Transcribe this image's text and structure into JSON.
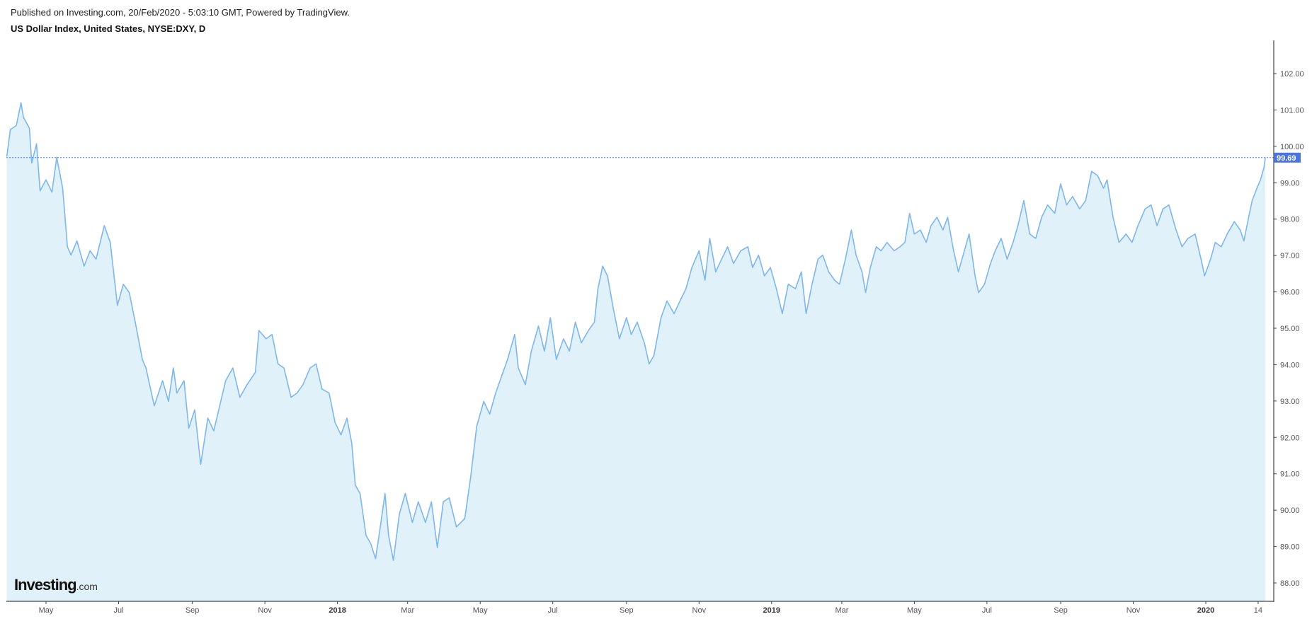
{
  "header": {
    "published": "Published on Investing.com, 20/Feb/2020 - 5:03:10 GMT, Powered by TradingView.",
    "title": "US Dollar Index, United States, NYSE:DXY, D"
  },
  "logo": {
    "main": "Investing",
    "suffix": ".com"
  },
  "chart_data": {
    "type": "area",
    "title": "US Dollar Index, United States, NYSE:DXY, D",
    "y_axis_position": "right",
    "ylim": [
      87.5,
      102.8
    ],
    "y_ticks": [
      "102.00",
      "101.00",
      "100.00",
      "99.00",
      "98.00",
      "97.00",
      "96.00",
      "95.00",
      "94.00",
      "93.00",
      "92.00",
      "91.00",
      "90.00",
      "89.00",
      "88.00"
    ],
    "x_ticks": [
      {
        "label": "May",
        "date": "2017-05-01",
        "bold": false
      },
      {
        "label": "Jul",
        "date": "2017-07-01",
        "bold": false
      },
      {
        "label": "Sep",
        "date": "2017-09-01",
        "bold": false
      },
      {
        "label": "Nov",
        "date": "2017-11-01",
        "bold": false
      },
      {
        "label": "2018",
        "date": "2018-01-01",
        "bold": true
      },
      {
        "label": "Mar",
        "date": "2018-03-01",
        "bold": false
      },
      {
        "label": "May",
        "date": "2018-05-01",
        "bold": false
      },
      {
        "label": "Jul",
        "date": "2018-07-01",
        "bold": false
      },
      {
        "label": "Sep",
        "date": "2018-09-01",
        "bold": false
      },
      {
        "label": "Nov",
        "date": "2018-11-01",
        "bold": false
      },
      {
        "label": "2019",
        "date": "2019-01-01",
        "bold": true
      },
      {
        "label": "Mar",
        "date": "2019-03-01",
        "bold": false
      },
      {
        "label": "May",
        "date": "2019-05-01",
        "bold": false
      },
      {
        "label": "Jul",
        "date": "2019-07-01",
        "bold": false
      },
      {
        "label": "Sep",
        "date": "2019-09-01",
        "bold": false
      },
      {
        "label": "Nov",
        "date": "2019-11-01",
        "bold": false
      },
      {
        "label": "2020",
        "date": "2020-01-01",
        "bold": true
      },
      {
        "label": "14",
        "date": "2020-02-14",
        "bold": false
      }
    ],
    "last_value": "99.69",
    "colors": {
      "line": "#7db7ec",
      "fill": "#e1f1fa",
      "last_price": "#4a74e0"
    },
    "grid": false,
    "points": [
      [
        "2017-03-29",
        99.72
      ],
      [
        "2017-04-01",
        100.46
      ],
      [
        "2017-04-06",
        100.57
      ],
      [
        "2017-04-10",
        101.2
      ],
      [
        "2017-04-12",
        100.8
      ],
      [
        "2017-04-17",
        100.5
      ],
      [
        "2017-04-19",
        99.54
      ],
      [
        "2017-04-23",
        100.07
      ],
      [
        "2017-04-26",
        98.78
      ],
      [
        "2017-05-01",
        99.08
      ],
      [
        "2017-05-06",
        98.74
      ],
      [
        "2017-05-10",
        99.7
      ],
      [
        "2017-05-15",
        98.85
      ],
      [
        "2017-05-19",
        97.24
      ],
      [
        "2017-05-22",
        97.01
      ],
      [
        "2017-05-27",
        97.4
      ],
      [
        "2017-06-02",
        96.71
      ],
      [
        "2017-06-07",
        97.13
      ],
      [
        "2017-06-12",
        96.9
      ],
      [
        "2017-06-19",
        97.82
      ],
      [
        "2017-06-24",
        97.36
      ],
      [
        "2017-06-30",
        95.63
      ],
      [
        "2017-07-05",
        96.21
      ],
      [
        "2017-07-10",
        95.98
      ],
      [
        "2017-07-15",
        95.17
      ],
      [
        "2017-07-21",
        94.14
      ],
      [
        "2017-07-24",
        93.91
      ],
      [
        "2017-07-31",
        92.87
      ],
      [
        "2017-08-07",
        93.56
      ],
      [
        "2017-08-12",
        92.99
      ],
      [
        "2017-08-16",
        93.91
      ],
      [
        "2017-08-19",
        93.22
      ],
      [
        "2017-08-25",
        93.56
      ],
      [
        "2017-08-29",
        92.25
      ],
      [
        "2017-09-03",
        92.76
      ],
      [
        "2017-09-08",
        91.26
      ],
      [
        "2017-09-14",
        92.53
      ],
      [
        "2017-09-19",
        92.18
      ],
      [
        "2017-09-24",
        92.87
      ],
      [
        "2017-09-29",
        93.56
      ],
      [
        "2017-10-05",
        93.91
      ],
      [
        "2017-10-11",
        93.1
      ],
      [
        "2017-10-17",
        93.45
      ],
      [
        "2017-10-24",
        93.79
      ],
      [
        "2017-10-27",
        94.94
      ],
      [
        "2017-11-02",
        94.71
      ],
      [
        "2017-11-07",
        94.83
      ],
      [
        "2017-11-12",
        94.02
      ],
      [
        "2017-11-17",
        93.91
      ],
      [
        "2017-11-23",
        93.1
      ],
      [
        "2017-11-28",
        93.22
      ],
      [
        "2017-12-03",
        93.45
      ],
      [
        "2017-12-09",
        93.91
      ],
      [
        "2017-12-14",
        94.02
      ],
      [
        "2017-12-19",
        93.33
      ],
      [
        "2017-12-25",
        93.22
      ],
      [
        "2017-12-30",
        92.41
      ],
      [
        "2018-01-04",
        92.07
      ],
      [
        "2018-01-09",
        92.53
      ],
      [
        "2018-01-13",
        91.84
      ],
      [
        "2018-01-16",
        90.69
      ],
      [
        "2018-01-20",
        90.46
      ],
      [
        "2018-01-25",
        89.31
      ],
      [
        "2018-01-29",
        89.08
      ],
      [
        "2018-02-02",
        88.67
      ],
      [
        "2018-02-06",
        89.54
      ],
      [
        "2018-02-10",
        90.46
      ],
      [
        "2018-02-13",
        89.31
      ],
      [
        "2018-02-17",
        88.62
      ],
      [
        "2018-02-22",
        89.89
      ],
      [
        "2018-02-27",
        90.46
      ],
      [
        "2018-03-05",
        89.66
      ],
      [
        "2018-03-10",
        90.23
      ],
      [
        "2018-03-16",
        89.66
      ],
      [
        "2018-03-21",
        90.23
      ],
      [
        "2018-03-26",
        88.97
      ],
      [
        "2018-03-31",
        90.23
      ],
      [
        "2018-04-05",
        90.34
      ],
      [
        "2018-04-11",
        89.54
      ],
      [
        "2018-04-18",
        89.77
      ],
      [
        "2018-04-23",
        90.92
      ],
      [
        "2018-04-28",
        92.3
      ],
      [
        "2018-05-04",
        92.99
      ],
      [
        "2018-05-09",
        92.64
      ],
      [
        "2018-05-14",
        93.22
      ],
      [
        "2018-05-19",
        93.68
      ],
      [
        "2018-05-24",
        94.14
      ],
      [
        "2018-05-30",
        94.83
      ],
      [
        "2018-06-02",
        93.91
      ],
      [
        "2018-06-08",
        93.45
      ],
      [
        "2018-06-13",
        94.37
      ],
      [
        "2018-06-19",
        95.06
      ],
      [
        "2018-06-24",
        94.37
      ],
      [
        "2018-06-29",
        95.29
      ],
      [
        "2018-07-04",
        94.14
      ],
      [
        "2018-07-10",
        94.71
      ],
      [
        "2018-07-15",
        94.37
      ],
      [
        "2018-07-20",
        95.17
      ],
      [
        "2018-07-25",
        94.6
      ],
      [
        "2018-07-31",
        94.94
      ],
      [
        "2018-08-05",
        95.17
      ],
      [
        "2018-08-08",
        96.09
      ],
      [
        "2018-08-12",
        96.71
      ],
      [
        "2018-08-16",
        96.44
      ],
      [
        "2018-08-21",
        95.52
      ],
      [
        "2018-08-26",
        94.71
      ],
      [
        "2018-09-01",
        95.29
      ],
      [
        "2018-09-05",
        94.83
      ],
      [
        "2018-09-10",
        95.17
      ],
      [
        "2018-09-16",
        94.6
      ],
      [
        "2018-09-20",
        94.02
      ],
      [
        "2018-09-24",
        94.25
      ],
      [
        "2018-09-30",
        95.29
      ],
      [
        "2018-10-05",
        95.75
      ],
      [
        "2018-10-11",
        95.4
      ],
      [
        "2018-10-16",
        95.75
      ],
      [
        "2018-10-21",
        96.09
      ],
      [
        "2018-10-26",
        96.67
      ],
      [
        "2018-11-01",
        97.13
      ],
      [
        "2018-11-06",
        96.32
      ],
      [
        "2018-11-10",
        97.47
      ],
      [
        "2018-11-15",
        96.55
      ],
      [
        "2018-11-20",
        96.9
      ],
      [
        "2018-11-25",
        97.24
      ],
      [
        "2018-11-30",
        96.78
      ],
      [
        "2018-12-06",
        97.13
      ],
      [
        "2018-12-12",
        97.24
      ],
      [
        "2018-12-16",
        96.67
      ],
      [
        "2018-12-21",
        97.01
      ],
      [
        "2018-12-26",
        96.44
      ],
      [
        "2018-12-31",
        96.67
      ],
      [
        "2019-01-05",
        96.09
      ],
      [
        "2019-01-10",
        95.4
      ],
      [
        "2019-01-15",
        96.21
      ],
      [
        "2019-01-21",
        96.09
      ],
      [
        "2019-01-26",
        96.55
      ],
      [
        "2019-01-30",
        95.4
      ],
      [
        "2019-02-04",
        96.21
      ],
      [
        "2019-02-09",
        96.9
      ],
      [
        "2019-02-13",
        97.01
      ],
      [
        "2019-02-18",
        96.55
      ],
      [
        "2019-02-23",
        96.32
      ],
      [
        "2019-02-27",
        96.21
      ],
      [
        "2019-03-04",
        96.9
      ],
      [
        "2019-03-09",
        97.7
      ],
      [
        "2019-03-13",
        97.01
      ],
      [
        "2019-03-18",
        96.55
      ],
      [
        "2019-03-21",
        95.98
      ],
      [
        "2019-03-25",
        96.67
      ],
      [
        "2019-03-30",
        97.24
      ],
      [
        "2019-04-03",
        97.13
      ],
      [
        "2019-04-08",
        97.36
      ],
      [
        "2019-04-14",
        97.13
      ],
      [
        "2019-04-19",
        97.24
      ],
      [
        "2019-04-23",
        97.36
      ],
      [
        "2019-04-27",
        98.16
      ],
      [
        "2019-05-01",
        97.59
      ],
      [
        "2019-05-06",
        97.7
      ],
      [
        "2019-05-11",
        97.36
      ],
      [
        "2019-05-15",
        97.82
      ],
      [
        "2019-05-20",
        98.05
      ],
      [
        "2019-05-25",
        97.7
      ],
      [
        "2019-05-29",
        98.05
      ],
      [
        "2019-06-03",
        97.13
      ],
      [
        "2019-06-07",
        96.55
      ],
      [
        "2019-06-12",
        97.13
      ],
      [
        "2019-06-16",
        97.59
      ],
      [
        "2019-06-21",
        96.44
      ],
      [
        "2019-06-24",
        95.98
      ],
      [
        "2019-06-29",
        96.21
      ],
      [
        "2019-07-04",
        96.78
      ],
      [
        "2019-07-08",
        97.13
      ],
      [
        "2019-07-13",
        97.47
      ],
      [
        "2019-07-18",
        96.9
      ],
      [
        "2019-07-23",
        97.36
      ],
      [
        "2019-07-27",
        97.82
      ],
      [
        "2019-08-01",
        98.51
      ],
      [
        "2019-08-06",
        97.59
      ],
      [
        "2019-08-11",
        97.47
      ],
      [
        "2019-08-16",
        98.05
      ],
      [
        "2019-08-21",
        98.39
      ],
      [
        "2019-08-27",
        98.16
      ],
      [
        "2019-09-01",
        98.97
      ],
      [
        "2019-09-06",
        98.39
      ],
      [
        "2019-09-11",
        98.62
      ],
      [
        "2019-09-17",
        98.28
      ],
      [
        "2019-09-22",
        98.51
      ],
      [
        "2019-09-27",
        99.31
      ],
      [
        "2019-10-02",
        99.2
      ],
      [
        "2019-10-07",
        98.85
      ],
      [
        "2019-10-10",
        99.08
      ],
      [
        "2019-10-15",
        98.05
      ],
      [
        "2019-10-20",
        97.36
      ],
      [
        "2019-10-26",
        97.59
      ],
      [
        "2019-10-31",
        97.36
      ],
      [
        "2019-11-05",
        97.82
      ],
      [
        "2019-11-11",
        98.28
      ],
      [
        "2019-11-16",
        98.39
      ],
      [
        "2019-11-21",
        97.82
      ],
      [
        "2019-11-26",
        98.28
      ],
      [
        "2019-12-01",
        98.39
      ],
      [
        "2019-12-07",
        97.7
      ],
      [
        "2019-12-12",
        97.24
      ],
      [
        "2019-12-17",
        97.47
      ],
      [
        "2019-12-23",
        97.59
      ],
      [
        "2019-12-28",
        96.9
      ],
      [
        "2019-12-31",
        96.44
      ],
      [
        "2020-01-05",
        96.9
      ],
      [
        "2020-01-09",
        97.36
      ],
      [
        "2020-01-14",
        97.24
      ],
      [
        "2020-01-19",
        97.59
      ],
      [
        "2020-01-25",
        97.93
      ],
      [
        "2020-01-30",
        97.7
      ],
      [
        "2020-02-02",
        97.4
      ],
      [
        "2020-02-06",
        98.05
      ],
      [
        "2020-02-09",
        98.51
      ],
      [
        "2020-02-13",
        98.85
      ],
      [
        "2020-02-16",
        99.08
      ],
      [
        "2020-02-19",
        99.43
      ],
      [
        "2020-02-20",
        99.69
      ]
    ]
  }
}
